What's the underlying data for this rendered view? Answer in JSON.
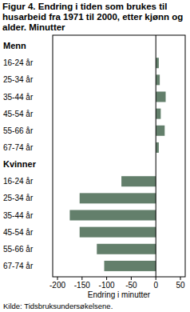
{
  "chart_data": {
    "type": "bar",
    "orientation": "horizontal",
    "title": "Figur 4. Endring i tiden som brukes til husarbeid fra 1971 til 2000, etter kjønn og alder. Minutter",
    "x_label": "Endring i minutter",
    "source": "Kilde: Tidsbruksundersøkelsene.",
    "categories": [
      "Menn",
      "16-24 år",
      "25-34 år",
      "35-44 år",
      "45-54 år",
      "55-66 år",
      "67-74 år",
      "Kvinner",
      "16-24 år",
      "25-34 år",
      "35-44 år",
      "45-54 år",
      "55-66 år",
      "67-74 år"
    ],
    "values": [
      null,
      6,
      8,
      20,
      10,
      18,
      6,
      null,
      -70,
      -155,
      -175,
      -155,
      -120,
      -105
    ],
    "color": "#637f6b",
    "xlim": [
      -200,
      50
    ],
    "xticks": [
      -200,
      -150,
      -100,
      -50,
      0,
      50
    ],
    "grid": false
  }
}
